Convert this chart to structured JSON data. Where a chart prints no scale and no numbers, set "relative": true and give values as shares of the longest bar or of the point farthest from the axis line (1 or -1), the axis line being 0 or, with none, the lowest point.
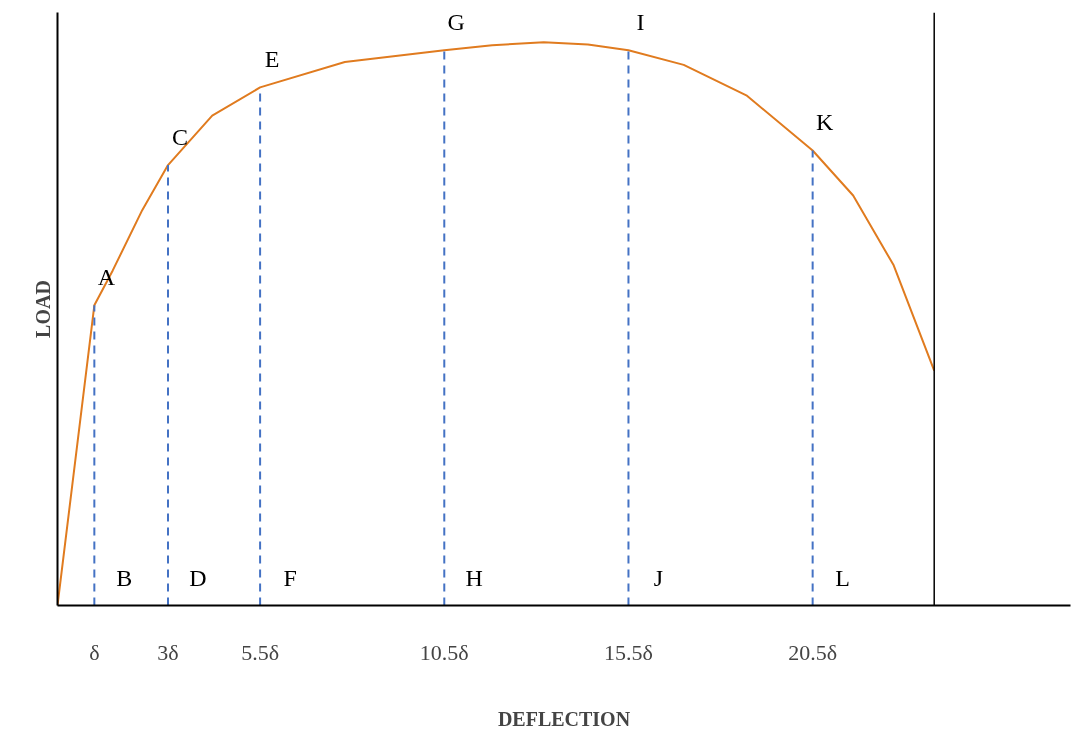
{
  "chart_data": {
    "type": "line",
    "relative": true,
    "xlabel": "DEFLECTION",
    "ylabel": "LOAD",
    "x": [
      0,
      1,
      1.5,
      2.3,
      3,
      4.2,
      5.5,
      7.8,
      10.5,
      11.8,
      13.2,
      14.4,
      15.5,
      17,
      18.7,
      20.5,
      21.6,
      22.7,
      23.8
    ],
    "series": [
      {
        "color": "#e07b1f",
        "values": [
          0,
          0.533,
          0.595,
          0.702,
          0.782,
          0.87,
          0.92,
          0.965,
          0.986,
          0.995,
          1.0,
          0.996,
          0.986,
          0.96,
          0.906,
          0.808,
          0.728,
          0.604,
          0.417
        ]
      }
    ],
    "xlim": [
      0,
      27.5
    ],
    "xticks": [
      {
        "value": 1,
        "label": "δ"
      },
      {
        "value": 3,
        "label": "3δ"
      },
      {
        "value": 5.5,
        "label": "5.5δ"
      },
      {
        "value": 10.5,
        "label": "10.5δ"
      },
      {
        "value": 15.5,
        "label": "15.5δ"
      },
      {
        "value": 20.5,
        "label": "20.5δ"
      }
    ],
    "ref_lines": [
      {
        "axis": "x",
        "value": 1,
        "color": "#4472c4",
        "line_style": "dashed"
      },
      {
        "axis": "x",
        "value": 3,
        "color": "#4472c4",
        "line_style": "dashed"
      },
      {
        "axis": "x",
        "value": 5.5,
        "color": "#4472c4",
        "line_style": "dashed"
      },
      {
        "axis": "x",
        "value": 10.5,
        "color": "#4472c4",
        "line_style": "dashed"
      },
      {
        "axis": "x",
        "value": 15.5,
        "color": "#4472c4",
        "line_style": "dashed"
      },
      {
        "axis": "x",
        "value": 20.5,
        "color": "#4472c4",
        "line_style": "dashed"
      },
      {
        "axis": "x",
        "value": 23.8,
        "color": "#000000",
        "line_style": "solid"
      }
    ],
    "annotations": [
      {
        "text": "A",
        "x": 1,
        "y": 0.533
      },
      {
        "text": "B",
        "x": 1,
        "y": 0
      },
      {
        "text": "C",
        "x": 3,
        "y": 0.782
      },
      {
        "text": "D",
        "x": 3,
        "y": 0
      },
      {
        "text": "E",
        "x": 5.5,
        "y": 0.92
      },
      {
        "text": "F",
        "x": 5.5,
        "y": 0
      },
      {
        "text": "G",
        "x": 10.5,
        "y": 0.986
      },
      {
        "text": "H",
        "x": 10.5,
        "y": 0
      },
      {
        "text": "I",
        "x": 15.5,
        "y": 0.986
      },
      {
        "text": "J",
        "x": 15.5,
        "y": 0
      },
      {
        "text": "K",
        "x": 20.5,
        "y": 0.808
      },
      {
        "text": "L",
        "x": 20.5,
        "y": 0
      }
    ],
    "grid": false,
    "line_style": "solid",
    "marker": "none"
  }
}
